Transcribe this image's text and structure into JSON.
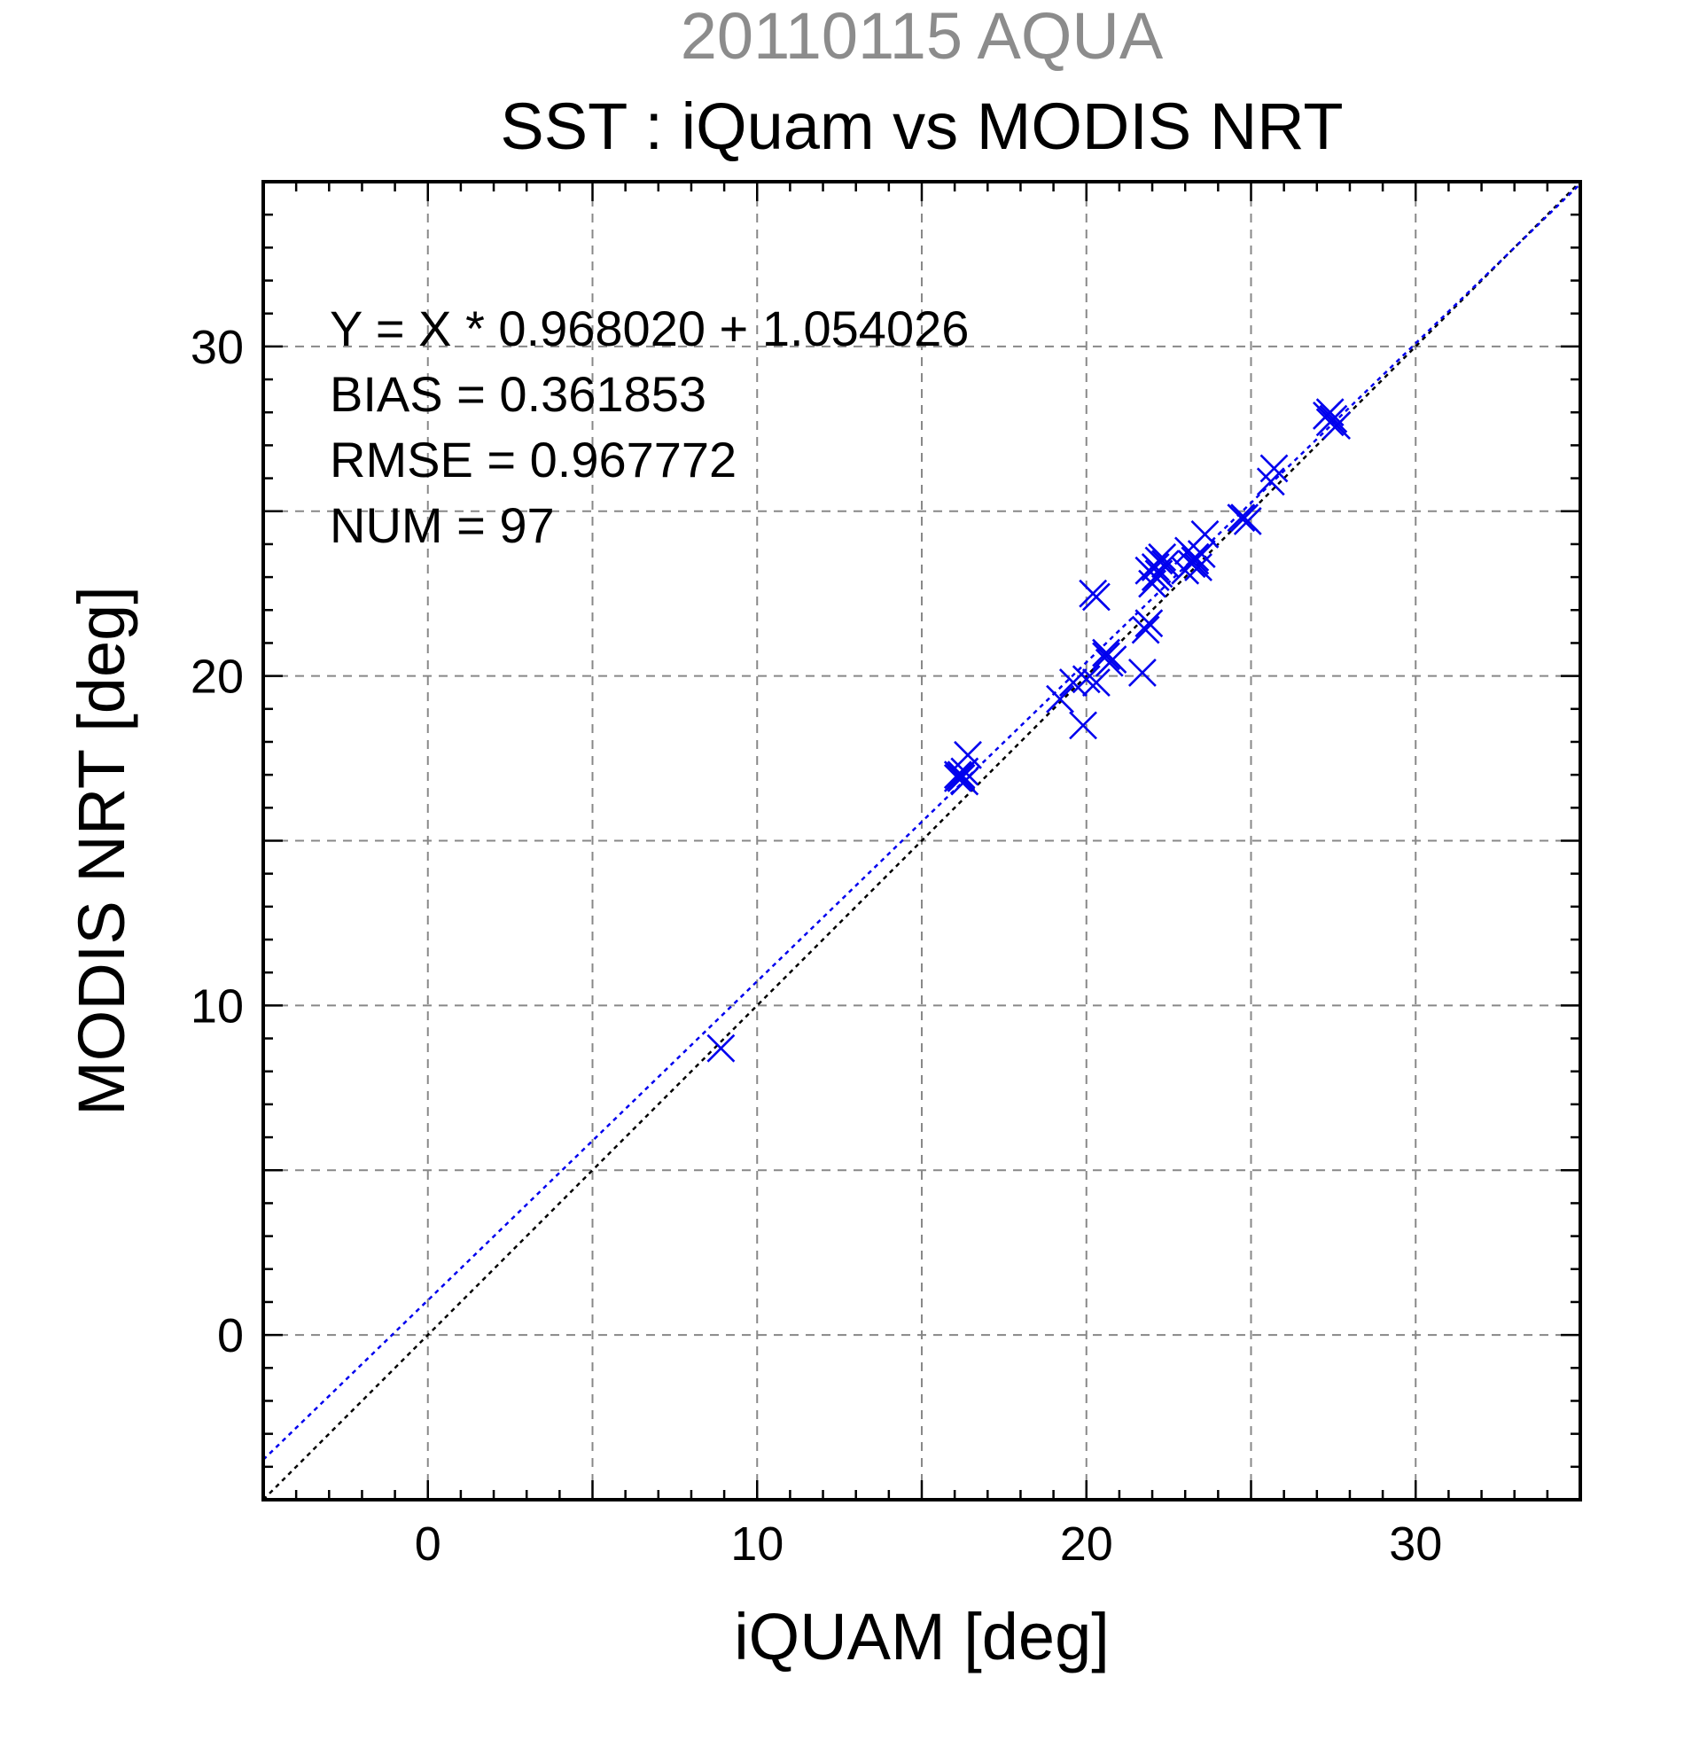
{
  "chart_data": {
    "type": "scatter",
    "suptitle": "20110115 AQUA",
    "title": "SST : iQuam vs MODIS NRT",
    "xlabel": "iQUAM [deg]",
    "ylabel": "MODIS NRT [deg]",
    "xlim": [
      -5,
      35
    ],
    "ylim": [
      -5,
      35
    ],
    "major_ticks": [
      0,
      10,
      20,
      30
    ],
    "grid": true,
    "marker": "x",
    "colors": {
      "points": "#0000ee",
      "fit_line": "#0000ee",
      "identity_line": "#000000",
      "suptitle": "#8c8c8c"
    },
    "stats": [
      "Y = X * 0.968020 + 1.054026",
      "BIAS = 0.361853",
      "RMSE = 0.967772",
      "NUM = 97"
    ],
    "fit": {
      "slope": 0.96802,
      "intercept": 1.054026
    },
    "identity": {
      "slope": 1,
      "intercept": 0
    },
    "series": [
      {
        "x": [
          8.9,
          16.1,
          16.2,
          16.3,
          16.1,
          16.4,
          16.2,
          16.3,
          19.2,
          19.6,
          19.9,
          20.0,
          20.3,
          20.2,
          20.3,
          20.6,
          20.7,
          20.8,
          20.6,
          21.7,
          21.9,
          21.8,
          22.0,
          22.1,
          21.9,
          22.2,
          22.3,
          22.1,
          22.4,
          22.2,
          23.0,
          23.2,
          23.3,
          23.1,
          23.4,
          23.5,
          23.6,
          23.3,
          24.7,
          24.9,
          24.8,
          25.6,
          25.7,
          27.3,
          27.4,
          27.5,
          27.4,
          27.6
        ],
        "y": [
          8.7,
          16.9,
          17.0,
          16.8,
          17.0,
          17.6,
          16.9,
          17.1,
          19.3,
          19.8,
          18.5,
          19.9,
          19.8,
          22.5,
          22.4,
          20.6,
          20.4,
          20.5,
          20.7,
          20.1,
          21.6,
          21.4,
          22.8,
          23.0,
          23.2,
          23.5,
          23.6,
          23.3,
          23.4,
          23.1,
          23.2,
          23.4,
          23.6,
          23.8,
          23.3,
          23.7,
          24.3,
          23.5,
          24.8,
          24.7,
          24.8,
          25.9,
          26.3,
          27.9,
          28.0,
          27.8,
          27.7,
          27.6
        ]
      }
    ]
  }
}
